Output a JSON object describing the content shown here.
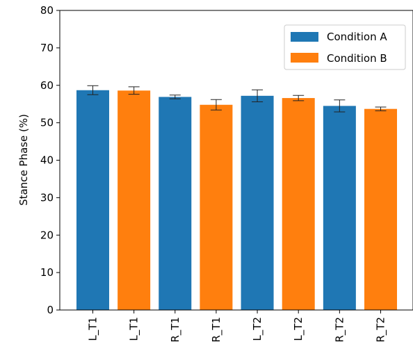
{
  "chart_data": {
    "type": "bar",
    "ylabel": "Stance Phase (%)",
    "ylim": [
      0,
      80
    ],
    "yticks": [
      0,
      10,
      20,
      30,
      40,
      50,
      60,
      70,
      80
    ],
    "bars": [
      {
        "label": "L_T1",
        "series": "Condition A",
        "value": 58.7,
        "err": 1.2
      },
      {
        "label": "L_T1",
        "series": "Condition B",
        "value": 58.6,
        "err": 1.0
      },
      {
        "label": "R_T1",
        "series": "Condition A",
        "value": 56.9,
        "err": 0.5
      },
      {
        "label": "R_T1",
        "series": "Condition B",
        "value": 54.8,
        "err": 1.4
      },
      {
        "label": "L_T2",
        "series": "Condition A",
        "value": 57.2,
        "err": 1.6
      },
      {
        "label": "L_T2",
        "series": "Condition B",
        "value": 56.6,
        "err": 0.7
      },
      {
        "label": "R_T2",
        "series": "Condition A",
        "value": 54.5,
        "err": 1.6
      },
      {
        "label": "R_T2",
        "series": "Condition B",
        "value": 53.7,
        "err": 0.5
      }
    ],
    "legend": {
      "placement": "top-right",
      "entries": [
        {
          "name": "Condition A",
          "color": "#1f77b4"
        },
        {
          "name": "Condition B",
          "color": "#ff7f0e"
        }
      ]
    },
    "grid": false
  }
}
